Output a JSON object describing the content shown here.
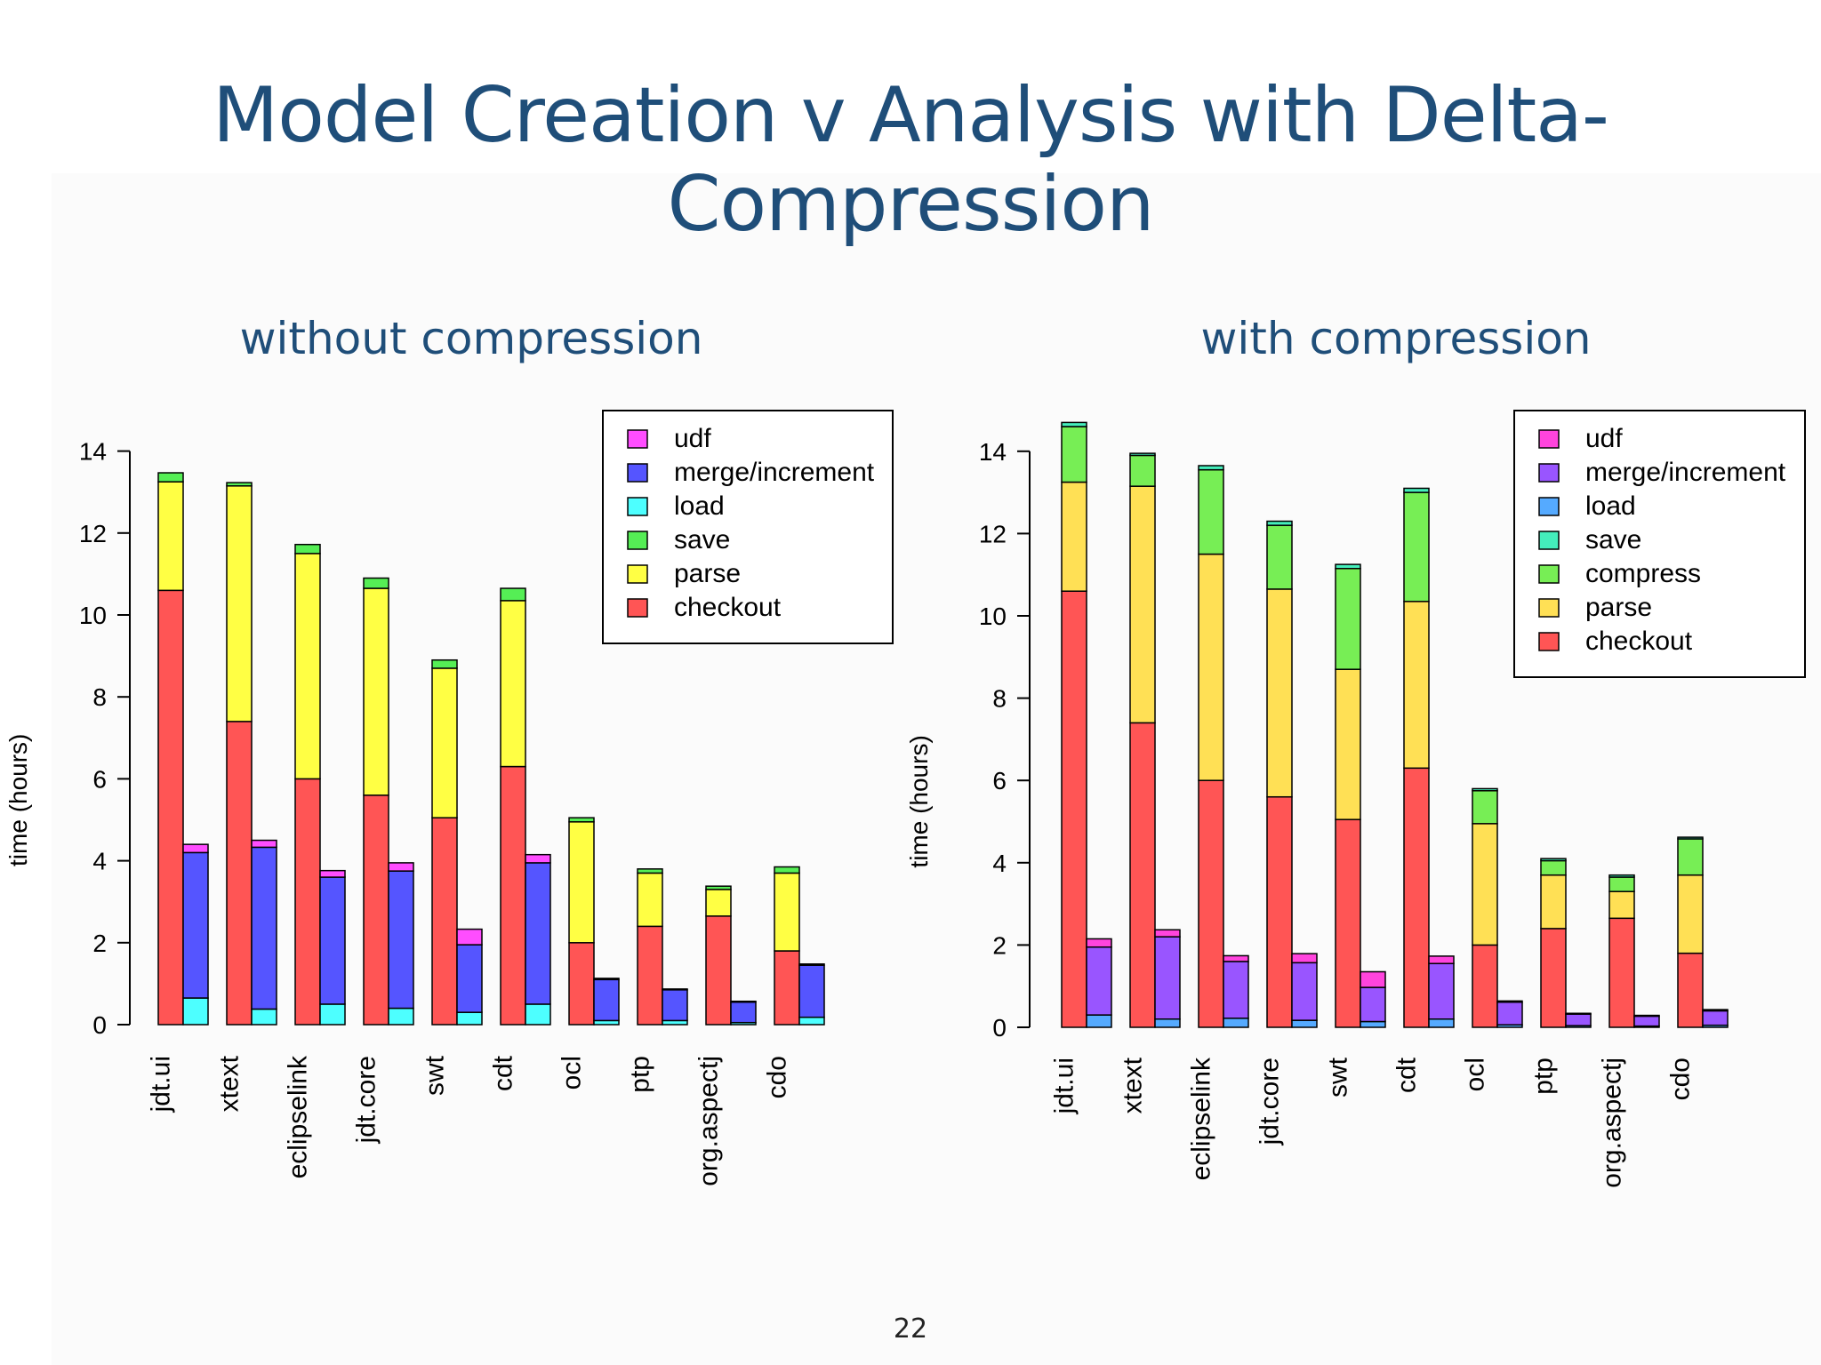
{
  "slide": {
    "title": "Model Creation v Analysis with Delta-Compression",
    "page_number": "22"
  },
  "colors": {
    "title": "#1f4e79",
    "left": {
      "udf": "#ff4dff",
      "merge/increment": "#5555ff",
      "load": "#4dffff",
      "save": "#55ee55",
      "parse": "#ffff44",
      "checkout": "#ff5555"
    },
    "right": {
      "udf": "#ff44dd",
      "merge/increment": "#9955ff",
      "load": "#55aaff",
      "save": "#44eebb",
      "compress": "#77ee55",
      "parse": "#ffe055",
      "checkout": "#ff5555"
    }
  },
  "chart_data": [
    {
      "type": "bar",
      "stacked": true,
      "title": "without compression",
      "xlabel": "",
      "ylabel": "time (hours)",
      "ylim": [
        0,
        14
      ],
      "yticks": [
        0,
        2,
        4,
        6,
        8,
        10,
        12,
        14
      ],
      "categories": [
        "jdt.ui",
        "xtext",
        "eclipselink",
        "jdt.core",
        "swt",
        "cdt",
        "ocl",
        "ptp",
        "org.aspectj",
        "cdo"
      ],
      "legend_position": "top-right",
      "legend": [
        "udf",
        "merge/increment",
        "load",
        "save",
        "parse",
        "checkout"
      ],
      "creation_series": [
        {
          "name": "checkout",
          "values": [
            10.6,
            7.4,
            6.0,
            5.6,
            5.05,
            6.3,
            2.0,
            2.4,
            2.65,
            1.8
          ]
        },
        {
          "name": "parse",
          "values": [
            2.65,
            5.75,
            5.5,
            5.05,
            3.65,
            4.05,
            2.95,
            1.3,
            0.65,
            1.9
          ]
        },
        {
          "name": "save",
          "values": [
            0.22,
            0.08,
            0.22,
            0.25,
            0.2,
            0.3,
            0.1,
            0.1,
            0.08,
            0.15
          ]
        }
      ],
      "analysis_series": [
        {
          "name": "load",
          "values": [
            0.65,
            0.38,
            0.5,
            0.4,
            0.3,
            0.5,
            0.1,
            0.1,
            0.05,
            0.18
          ]
        },
        {
          "name": "merge/increment",
          "values": [
            3.55,
            3.95,
            3.1,
            3.35,
            1.65,
            3.45,
            1.0,
            0.75,
            0.5,
            1.27
          ]
        },
        {
          "name": "udf",
          "values": [
            0.2,
            0.17,
            0.16,
            0.2,
            0.38,
            0.2,
            0.03,
            0.02,
            0.02,
            0.03
          ]
        }
      ]
    },
    {
      "type": "bar",
      "stacked": true,
      "title": "with compression",
      "xlabel": "",
      "ylabel": "time (hours)",
      "ylim": [
        0,
        14
      ],
      "yticks": [
        0,
        2,
        4,
        6,
        8,
        10,
        12,
        14
      ],
      "categories": [
        "jdt.ui",
        "xtext",
        "eclipselink",
        "jdt.core",
        "swt",
        "cdt",
        "ocl",
        "ptp",
        "org.aspectj",
        "cdo"
      ],
      "legend_position": "top-right",
      "legend": [
        "udf",
        "merge/increment",
        "load",
        "save",
        "compress",
        "parse",
        "checkout"
      ],
      "creation_series": [
        {
          "name": "checkout",
          "values": [
            10.6,
            7.4,
            6.0,
            5.6,
            5.05,
            6.3,
            2.0,
            2.4,
            2.65,
            1.8
          ]
        },
        {
          "name": "parse",
          "values": [
            2.65,
            5.75,
            5.5,
            5.05,
            3.65,
            4.05,
            2.95,
            1.3,
            0.65,
            1.9
          ]
        },
        {
          "name": "compress",
          "values": [
            1.35,
            0.75,
            2.05,
            1.55,
            2.45,
            2.65,
            0.8,
            0.35,
            0.35,
            0.88
          ]
        },
        {
          "name": "save",
          "values": [
            0.1,
            0.05,
            0.1,
            0.1,
            0.1,
            0.1,
            0.05,
            0.05,
            0.05,
            0.04
          ]
        }
      ],
      "analysis_series": [
        {
          "name": "load",
          "values": [
            0.3,
            0.2,
            0.22,
            0.17,
            0.14,
            0.2,
            0.06,
            0.04,
            0.03,
            0.05
          ]
        },
        {
          "name": "merge/increment",
          "values": [
            1.65,
            2.0,
            1.38,
            1.4,
            0.83,
            1.35,
            0.55,
            0.28,
            0.24,
            0.35
          ]
        },
        {
          "name": "udf",
          "values": [
            0.2,
            0.17,
            0.14,
            0.22,
            0.38,
            0.18,
            0.03,
            0.02,
            0.02,
            0.03
          ]
        }
      ]
    }
  ]
}
